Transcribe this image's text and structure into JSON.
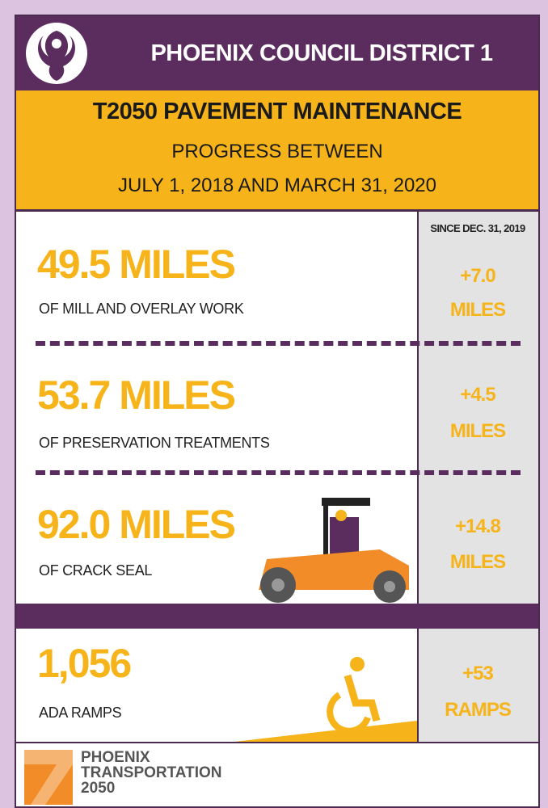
{
  "header": {
    "title": "PHOENIX COUNCIL DISTRICT 1"
  },
  "banner": {
    "lines": [
      "T2050 PAVEMENT MAINTENANCE",
      "PROGRESS BETWEEN",
      "JULY 1, 2018 AND MARCH 31, 2020"
    ]
  },
  "since_label": "SINCE DEC. 31, 2019",
  "metrics": [
    {
      "value": "49.5 MILES",
      "description": "OF MILL AND OVERLAY WORK",
      "change": "+7.0",
      "change_unit": "MILES"
    },
    {
      "value": "53.7 MILES",
      "description": "OF PRESERVATION TREATMENTS",
      "change": "+4.5",
      "change_unit": "MILES"
    },
    {
      "value": "92.0 MILES",
      "description": "OF CRACK SEAL",
      "change": "+14.8",
      "change_unit": "MILES"
    },
    {
      "value": "1,056",
      "description": "ADA RAMPS",
      "change": "+53",
      "change_unit": "RAMPS"
    }
  ],
  "footer": {
    "lines": [
      "PHOENIX",
      "TRANSPORTATION",
      "2050"
    ]
  }
}
